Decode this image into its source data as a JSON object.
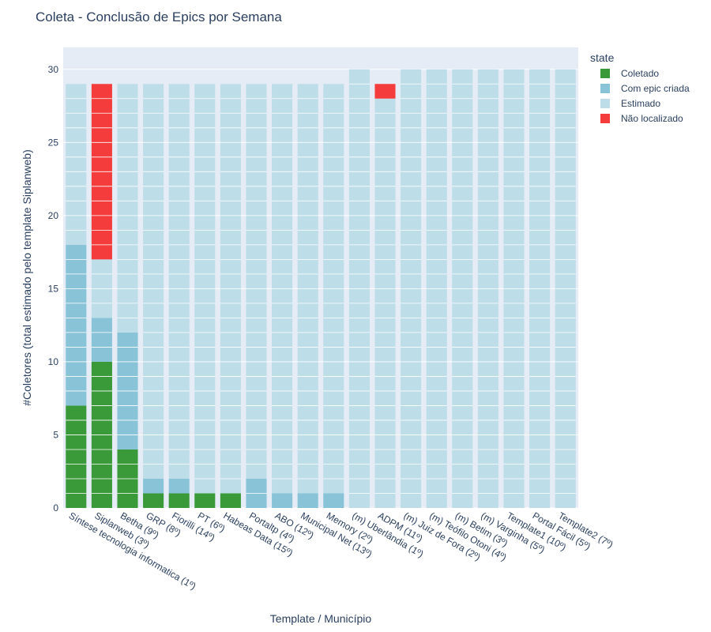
{
  "chart_data": {
    "type": "bar",
    "stacked": true,
    "title": "Coleta - Conclusão de Epics por Semana",
    "xlabel": "Template / Município",
    "ylabel": "#Coletores (total estimado pelo template Siplanweb)",
    "ylim": [
      0,
      31.5
    ],
    "yticks": [
      0,
      5,
      10,
      15,
      20,
      25,
      30
    ],
    "grid": true,
    "legend_title": "state",
    "legend_position": "top-right",
    "categories": [
      "Síntese tecnologia informatica (1º)",
      "Siplanweb (3º)",
      "Betha (9º)",
      "GRP (8º)",
      "Fiorilli (14º)",
      "PT (6º)",
      "Habeas Data (15º)",
      "Portaltp (4º)",
      "ABO (12º)",
      "Municipal Net (13º)",
      "Memory (2º)",
      "(m) Uberlândia (1º)",
      "ADPM (11º)",
      "(m) Juiz de Fora (2º)",
      "(m) Teófilo Otoni (4º)",
      "(m) Betim (3º)",
      "(m) Varginha (5º)",
      "Template1 (10º)",
      "Portal Fácil (5º)",
      "Template2 (7º)"
    ],
    "series": [
      {
        "name": "Coletado",
        "color": "#3a9a3a",
        "values": [
          7,
          10,
          4,
          1,
          1,
          1,
          1,
          0,
          0,
          0,
          0,
          0,
          0,
          0,
          0,
          0,
          0,
          0,
          0,
          0
        ]
      },
      {
        "name": "Com epic criada",
        "color": "#88c3d8",
        "values": [
          11,
          3,
          8,
          1,
          1,
          0,
          0,
          2,
          1,
          1,
          1,
          0,
          0,
          0,
          0,
          0,
          0,
          0,
          0,
          0
        ]
      },
      {
        "name": "Estimado",
        "color": "#bddde8",
        "values": [
          11,
          4,
          17,
          27,
          27,
          28,
          28,
          27,
          28,
          28,
          28,
          30,
          28,
          30,
          30,
          30,
          30,
          30,
          30,
          30
        ]
      },
      {
        "name": "Não localizado",
        "color": "#f53c3c",
        "values": [
          0,
          12,
          0,
          0,
          0,
          0,
          0,
          0,
          0,
          0,
          0,
          0,
          1,
          0,
          0,
          0,
          0,
          0,
          0,
          0
        ]
      }
    ]
  }
}
